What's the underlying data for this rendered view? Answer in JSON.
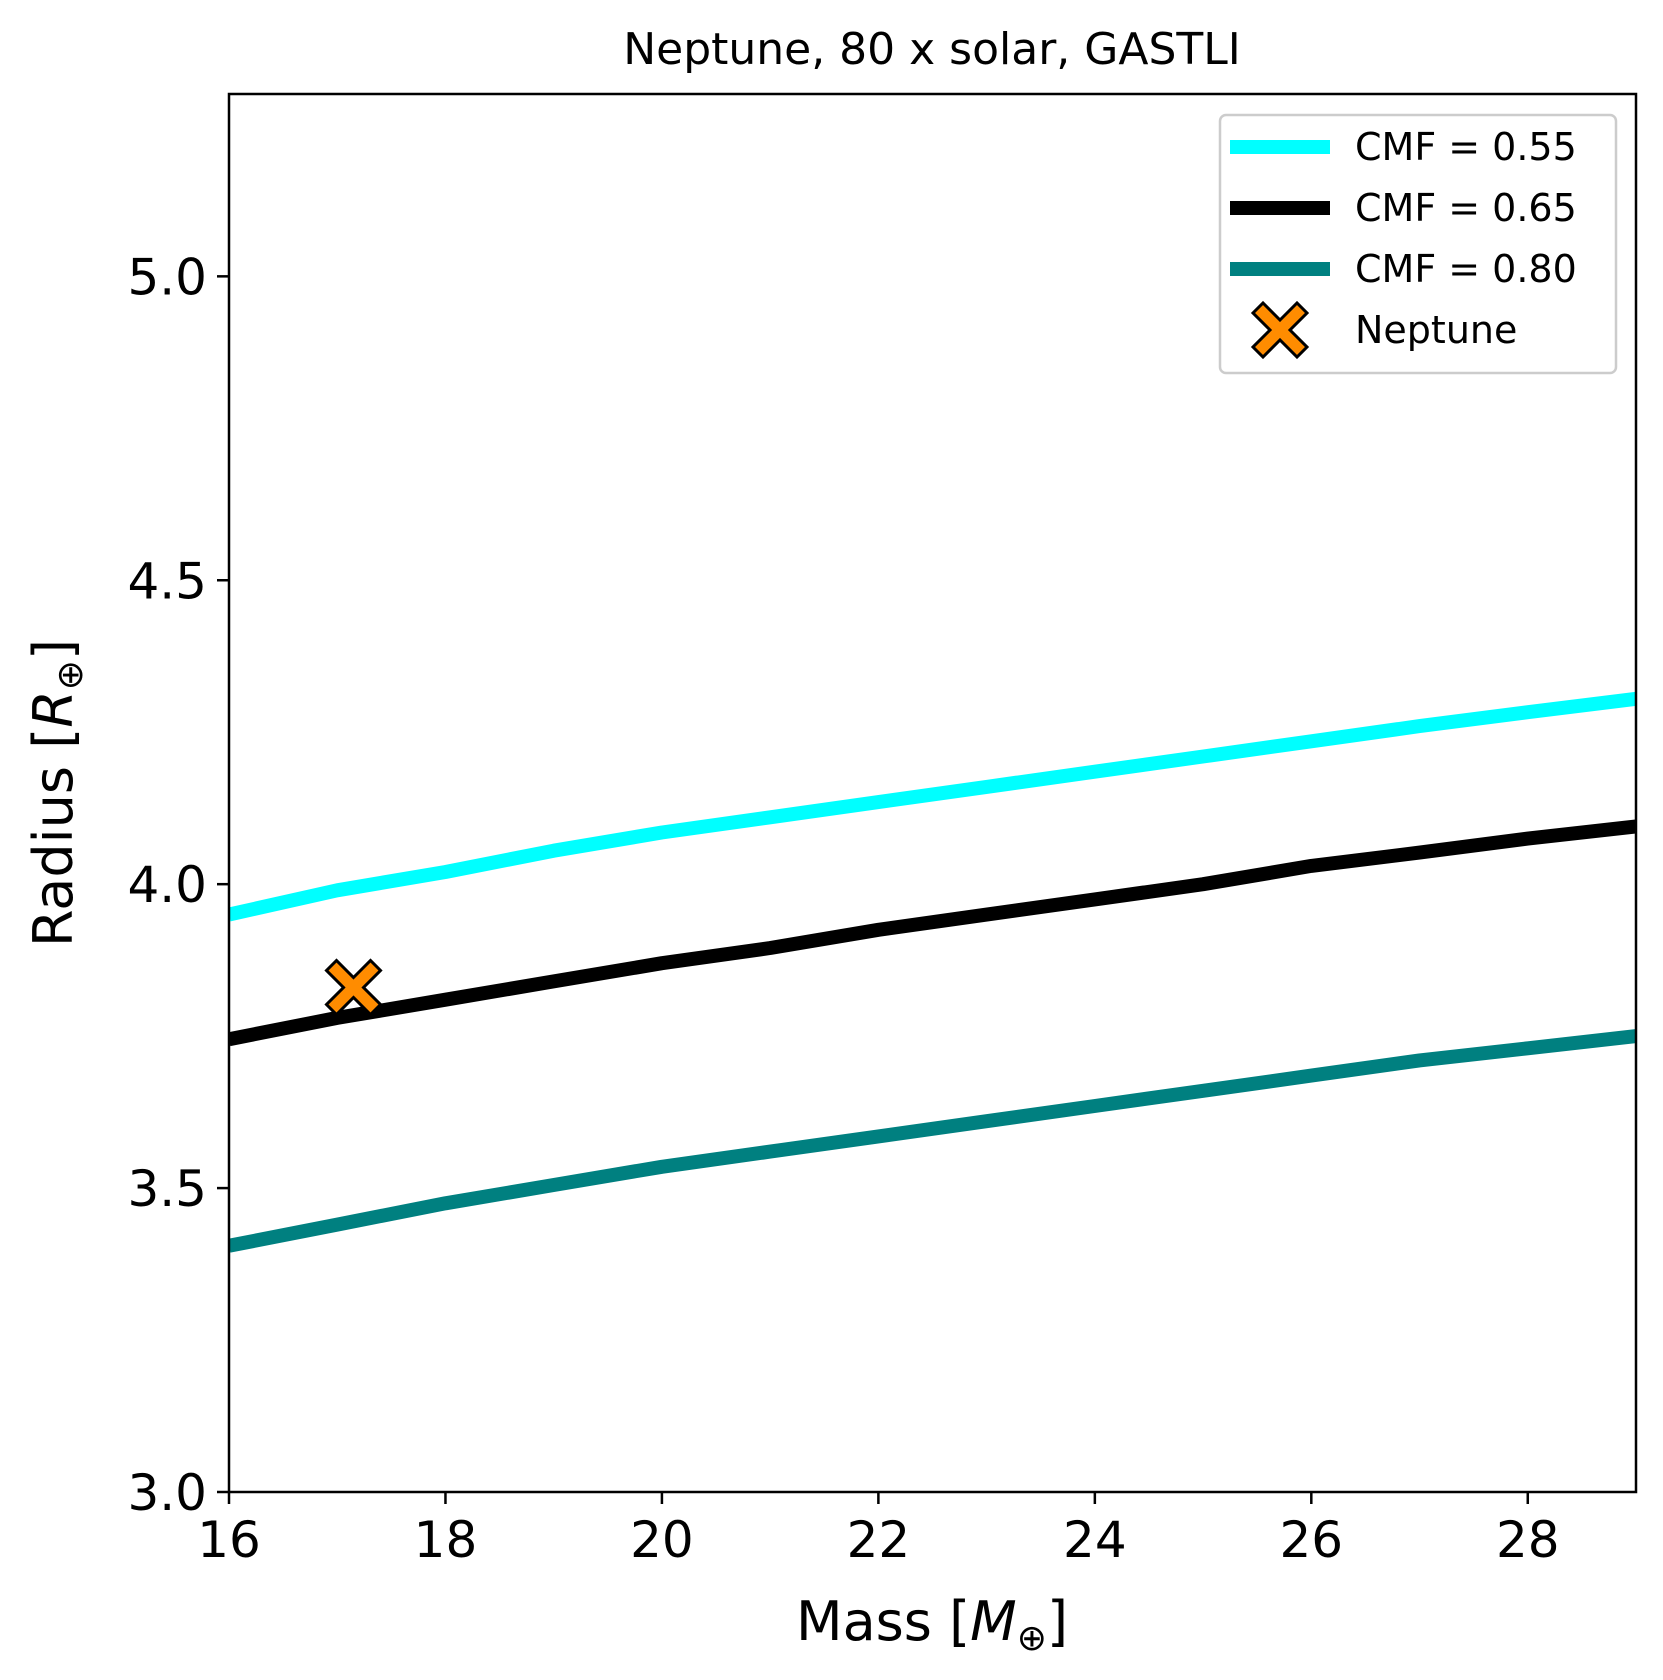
{
  "chart_data": {
    "type": "line",
    "title": "Neptune, 80 x solar, GASTLI",
    "xlabel": "Mass [M⊕]",
    "xlabel_parts": {
      "prefix": "Mass [",
      "symbol": "M",
      "subscript": "⊕",
      "suffix": "]"
    },
    "ylabel": "Radius [R⊕]",
    "ylabel_parts": {
      "prefix": "Radius [",
      "symbol": "R",
      "subscript": "⊕",
      "suffix": "]"
    },
    "xlim": [
      16,
      29
    ],
    "ylim": [
      3.0,
      5.3
    ],
    "xticks": [
      16,
      18,
      20,
      22,
      24,
      26,
      28
    ],
    "xtick_labels": [
      "16",
      "18",
      "20",
      "22",
      "24",
      "26",
      "28"
    ],
    "yticks": [
      3.0,
      3.5,
      4.0,
      4.5,
      5.0
    ],
    "ytick_labels": [
      "3.0",
      "3.5",
      "4.0",
      "4.5",
      "5.0"
    ],
    "legend_position": "top-right",
    "series": [
      {
        "name": "CMF = 0.55",
        "color": "#00ffff",
        "x": [
          16,
          17,
          18,
          19,
          20,
          21,
          22,
          23,
          24,
          25,
          26,
          27,
          28,
          29
        ],
        "y": [
          3.95,
          3.99,
          4.02,
          4.055,
          4.085,
          4.11,
          4.135,
          4.16,
          4.185,
          4.21,
          4.235,
          4.26,
          4.283,
          4.305
        ]
      },
      {
        "name": "CMF = 0.65",
        "color": "#000000",
        "x": [
          16,
          17,
          18,
          19,
          20,
          21,
          22,
          23,
          24,
          25,
          26,
          27,
          28,
          29
        ],
        "y": [
          3.745,
          3.78,
          3.81,
          3.84,
          3.87,
          3.895,
          3.925,
          3.95,
          3.975,
          4.0,
          4.03,
          4.052,
          4.075,
          4.095
        ]
      },
      {
        "name": "CMF = 0.80",
        "color": "#008080",
        "x": [
          16,
          17,
          18,
          19,
          20,
          21,
          22,
          23,
          24,
          25,
          26,
          27,
          28,
          29
        ],
        "y": [
          3.405,
          3.44,
          3.475,
          3.505,
          3.535,
          3.56,
          3.585,
          3.61,
          3.635,
          3.66,
          3.685,
          3.71,
          3.73,
          3.75
        ]
      }
    ],
    "markers": [
      {
        "name": "Neptune",
        "x": 17.15,
        "y": 3.83,
        "symbol": "X",
        "color": "#ff8c00",
        "edge_color": "#000000"
      }
    ]
  }
}
